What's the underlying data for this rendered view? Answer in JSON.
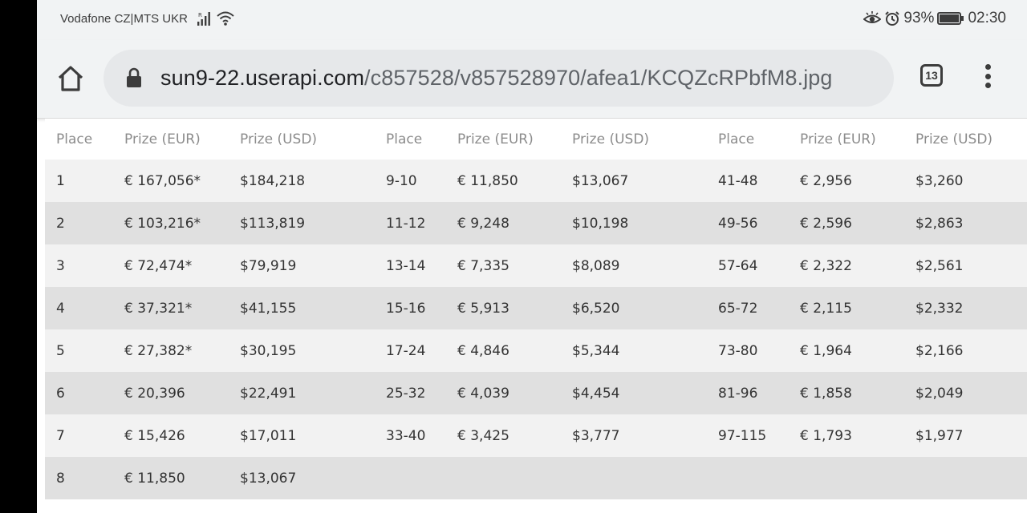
{
  "status_bar": {
    "carrier": "Vodafone CZ|MTS UKR",
    "battery_percent": "93%",
    "time": "02:30"
  },
  "browser": {
    "url_host": "sun9-22.userapi.com",
    "url_path": "/c857528/v857528970/afea1/KCQZcRPbfM8.jpg",
    "tab_count": "13"
  },
  "prize_table": {
    "headers": [
      "Place",
      "Prize (EUR)",
      "Prize (USD)",
      "Place",
      "Prize (EUR)",
      "Prize (USD)",
      "Place",
      "Prize (EUR)",
      "Prize (USD)"
    ],
    "rows": [
      [
        "1",
        "€ 167,056*",
        "$184,218",
        "9-10",
        "€ 11,850",
        "$13,067",
        "41-48",
        "€ 2,956",
        "$3,260"
      ],
      [
        "2",
        "€ 103,216*",
        "$113,819",
        "11-12",
        "€ 9,248",
        "$10,198",
        "49-56",
        "€ 2,596",
        "$2,863"
      ],
      [
        "3",
        "€ 72,474*",
        "$79,919",
        "13-14",
        "€ 7,335",
        "$8,089",
        "57-64",
        "€ 2,322",
        "$2,561"
      ],
      [
        "4",
        "€ 37,321*",
        "$41,155",
        "15-16",
        "€ 5,913",
        "$6,520",
        "65-72",
        "€ 2,115",
        "$2,332"
      ],
      [
        "5",
        "€ 27,382*",
        "$30,195",
        "17-24",
        "€ 4,846",
        "$5,344",
        "73-80",
        "€ 1,964",
        "$2,166"
      ],
      [
        "6",
        "€ 20,396",
        "$22,491",
        "25-32",
        "€ 4,039",
        "$4,454",
        "81-96",
        "€ 1,858",
        "$2,049"
      ],
      [
        "7",
        "€ 15,426",
        "$17,011",
        "33-40",
        "€ 3,425",
        "$3,777",
        "97-115",
        "€ 1,793",
        "$1,977"
      ],
      [
        "8",
        "€ 11,850",
        "$13,067",
        "",
        "",
        "",
        "",
        "",
        ""
      ]
    ]
  }
}
